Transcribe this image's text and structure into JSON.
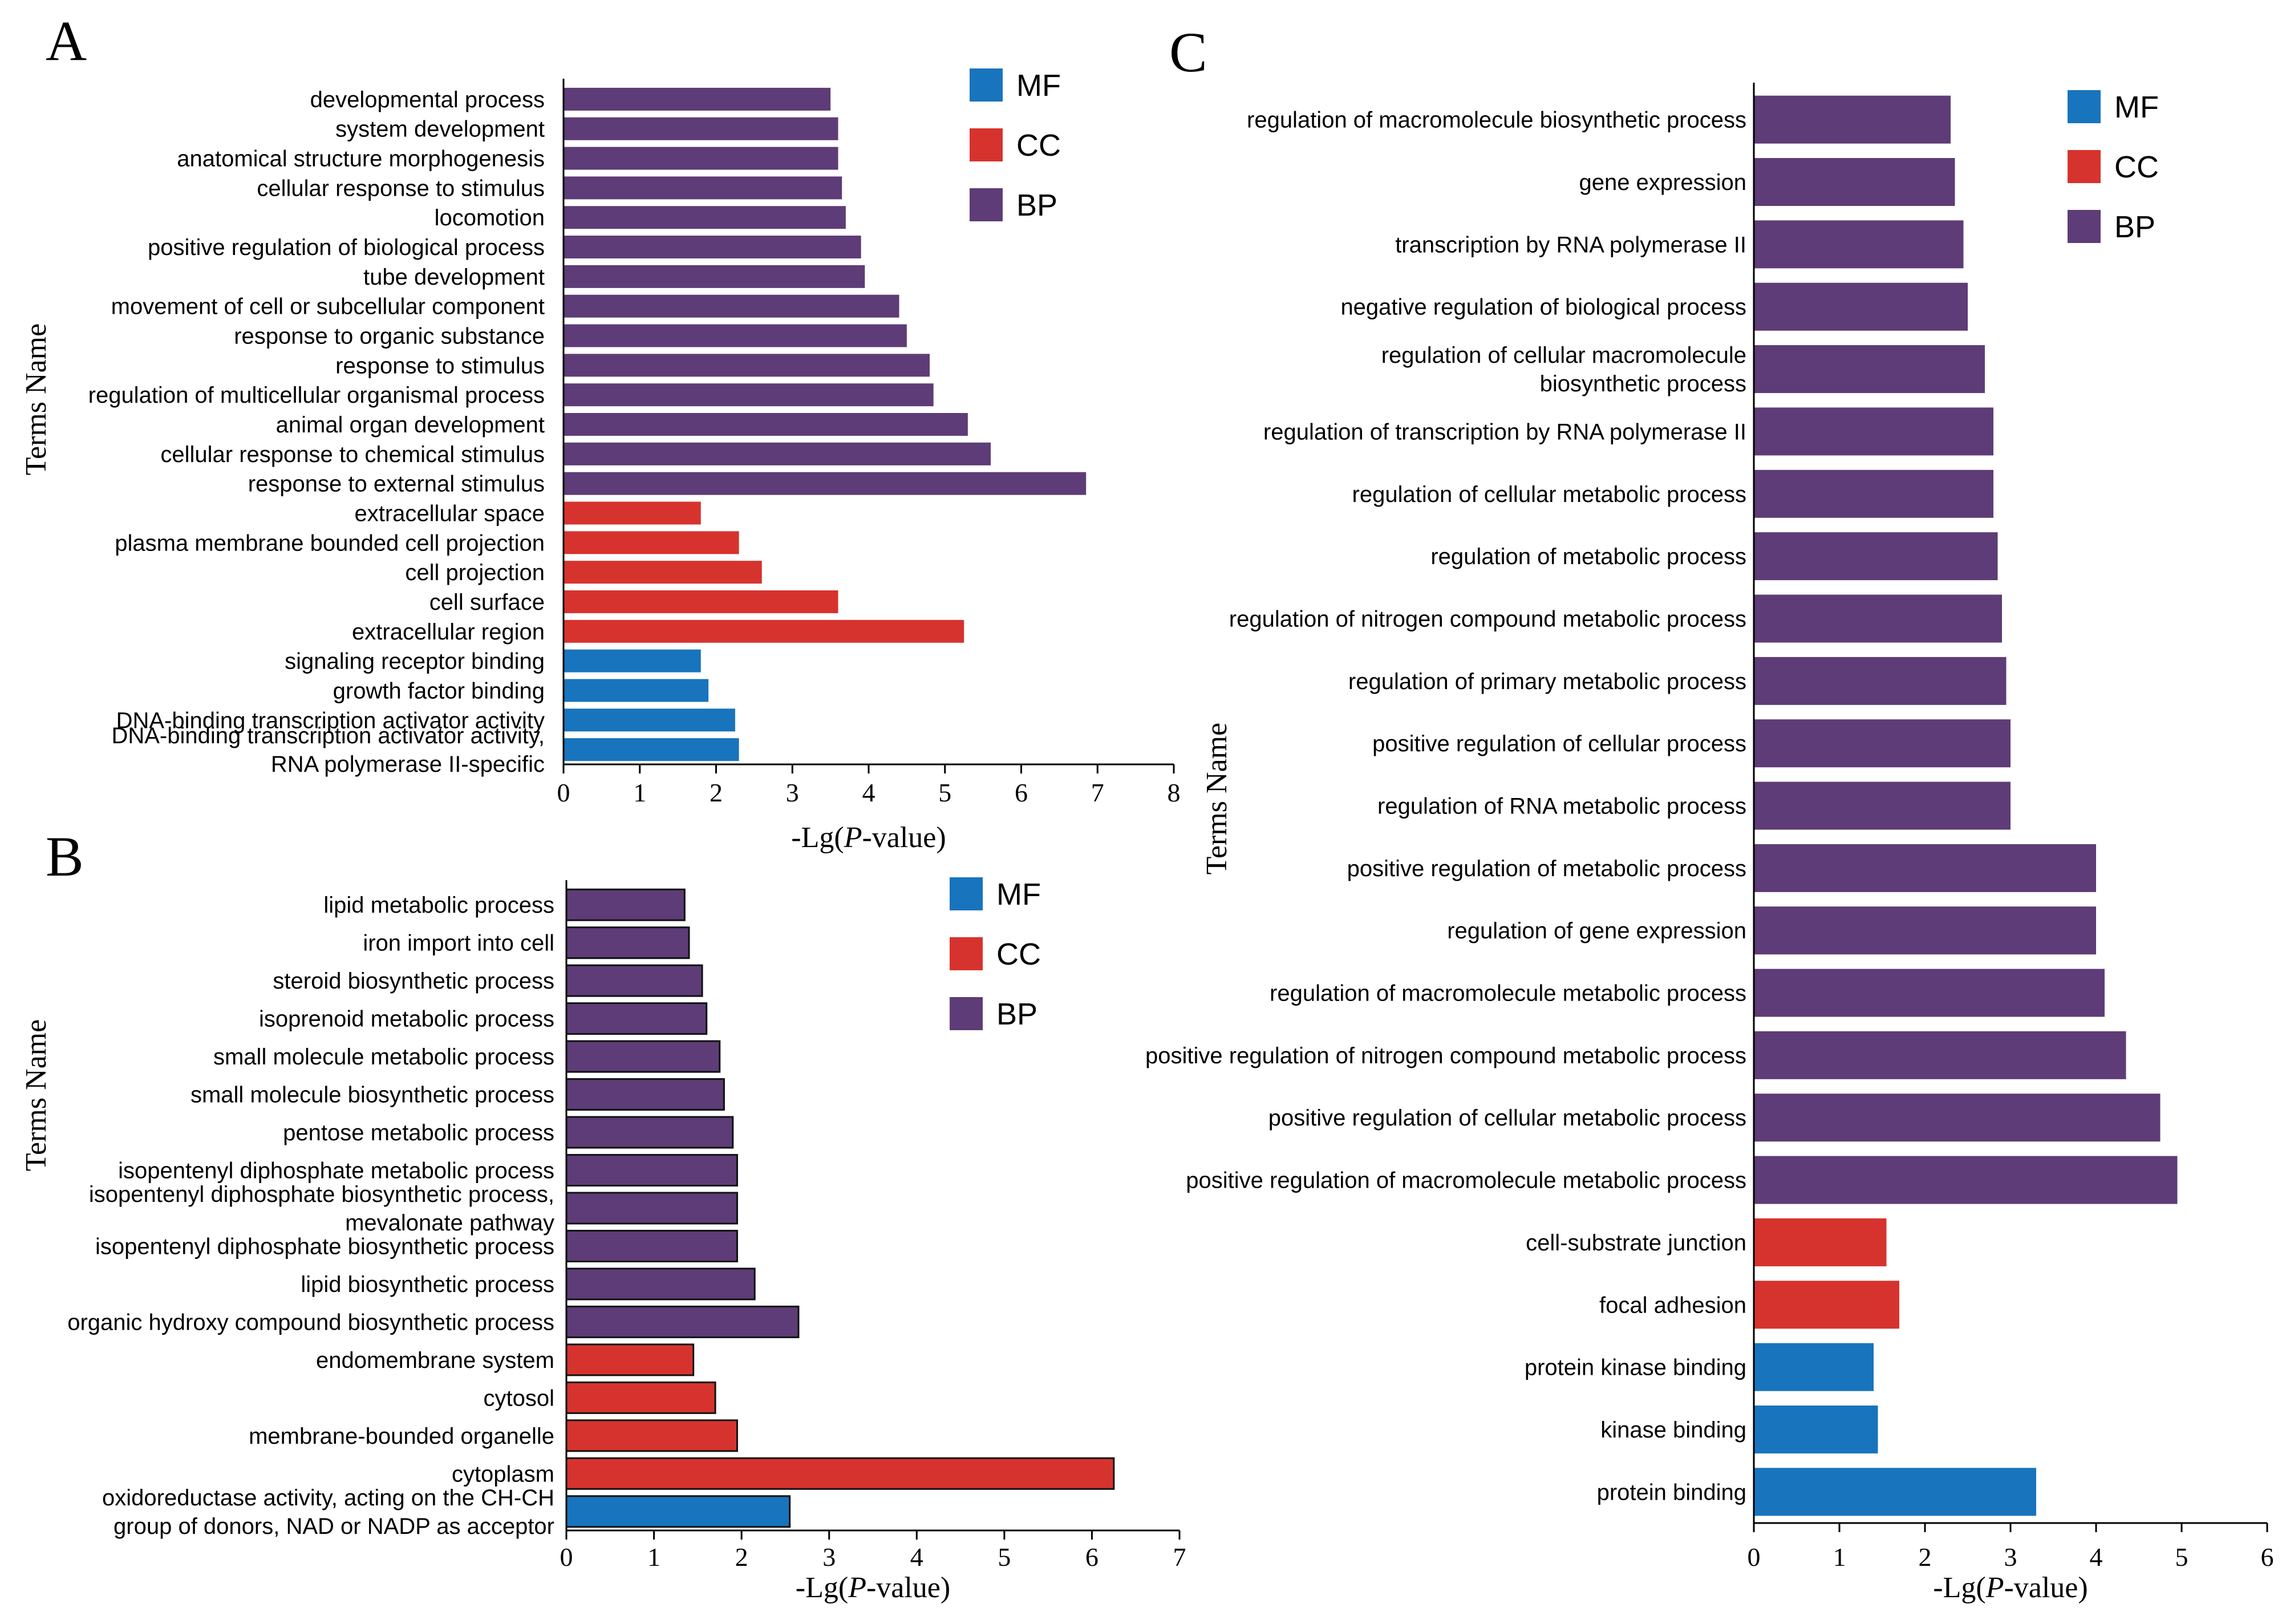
{
  "colors": {
    "MF": "#1874bd",
    "CC": "#d7332e",
    "BP": "#5e3c77"
  },
  "legend": [
    {
      "key": "MF",
      "label": "MF"
    },
    {
      "key": "CC",
      "label": "CC"
    },
    {
      "key": "BP",
      "label": "BP"
    }
  ],
  "chart_data": [
    {
      "panel": "A",
      "type": "bar",
      "orientation": "horizontal",
      "xlabel_prefix": "-Lg(",
      "xlabel_italic": "P",
      "xlabel_suffix": "-value)",
      "ylabel": "Terms Name",
      "xlim": [
        0,
        8
      ],
      "xticks": [
        "0",
        "1",
        "2",
        "3",
        "4",
        "5",
        "6",
        "7",
        "8"
      ],
      "legend_position": "top-right",
      "bars": [
        {
          "term": [
            "developmental process"
          ],
          "value": 3.5,
          "category": "BP"
        },
        {
          "term": [
            "system development"
          ],
          "value": 3.6,
          "category": "BP"
        },
        {
          "term": [
            "anatomical structure morphogenesis"
          ],
          "value": 3.6,
          "category": "BP"
        },
        {
          "term": [
            "cellular response to stimulus"
          ],
          "value": 3.65,
          "category": "BP"
        },
        {
          "term": [
            "locomotion"
          ],
          "value": 3.7,
          "category": "BP"
        },
        {
          "term": [
            "positive regulation of biological process"
          ],
          "value": 3.9,
          "category": "BP"
        },
        {
          "term": [
            "tube development"
          ],
          "value": 3.95,
          "category": "BP"
        },
        {
          "term": [
            "movement of cell or subcellular component"
          ],
          "value": 4.4,
          "category": "BP"
        },
        {
          "term": [
            "response to organic substance"
          ],
          "value": 4.5,
          "category": "BP"
        },
        {
          "term": [
            "response to stimulus"
          ],
          "value": 4.8,
          "category": "BP"
        },
        {
          "term": [
            "regulation of multicellular organismal process"
          ],
          "value": 4.85,
          "category": "BP"
        },
        {
          "term": [
            "animal organ development"
          ],
          "value": 5.3,
          "category": "BP"
        },
        {
          "term": [
            "cellular response to chemical stimulus"
          ],
          "value": 5.6,
          "category": "BP"
        },
        {
          "term": [
            "response to external stimulus"
          ],
          "value": 6.85,
          "category": "BP"
        },
        {
          "term": [
            "extracellular space"
          ],
          "value": 1.8,
          "category": "CC"
        },
        {
          "term": [
            "plasma membrane bounded cell projection"
          ],
          "value": 2.3,
          "category": "CC"
        },
        {
          "term": [
            "cell projection"
          ],
          "value": 2.6,
          "category": "CC"
        },
        {
          "term": [
            "cell surface"
          ],
          "value": 3.6,
          "category": "CC"
        },
        {
          "term": [
            "extracellular region"
          ],
          "value": 5.25,
          "category": "CC"
        },
        {
          "term": [
            "signaling receptor binding"
          ],
          "value": 1.8,
          "category": "MF"
        },
        {
          "term": [
            "growth factor binding"
          ],
          "value": 1.9,
          "category": "MF"
        },
        {
          "term": [
            "DNA-binding transcription activator activity"
          ],
          "value": 2.25,
          "category": "MF"
        },
        {
          "term": [
            "DNA-binding transcription activator activity,",
            "RNA polymerase II-specific"
          ],
          "value": 2.3,
          "category": "MF"
        }
      ]
    },
    {
      "panel": "B",
      "type": "bar",
      "orientation": "horizontal",
      "xlabel_prefix": "-Lg(",
      "xlabel_italic": "P",
      "xlabel_suffix": "-value)",
      "ylabel": "Terms Name",
      "xlim": [
        0,
        7
      ],
      "xticks": [
        "0",
        "1",
        "2",
        "3",
        "4",
        "5",
        "6",
        "7"
      ],
      "legend_position": "top-right",
      "bars": [
        {
          "term": [
            "lipid metabolic process"
          ],
          "value": 1.35,
          "category": "BP"
        },
        {
          "term": [
            "iron import into cell"
          ],
          "value": 1.4,
          "category": "BP"
        },
        {
          "term": [
            "steroid biosynthetic process"
          ],
          "value": 1.55,
          "category": "BP"
        },
        {
          "term": [
            "isoprenoid metabolic process"
          ],
          "value": 1.6,
          "category": "BP"
        },
        {
          "term": [
            "small molecule metabolic process"
          ],
          "value": 1.75,
          "category": "BP"
        },
        {
          "term": [
            "small molecule biosynthetic process"
          ],
          "value": 1.8,
          "category": "BP"
        },
        {
          "term": [
            "pentose metabolic process"
          ],
          "value": 1.9,
          "category": "BP"
        },
        {
          "term": [
            "isopentenyl diphosphate metabolic process"
          ],
          "value": 1.95,
          "category": "BP"
        },
        {
          "term": [
            "isopentenyl diphosphate biosynthetic process,",
            "mevalonate pathway"
          ],
          "value": 1.95,
          "category": "BP"
        },
        {
          "term": [
            "isopentenyl diphosphate biosynthetic process"
          ],
          "value": 1.95,
          "category": "BP"
        },
        {
          "term": [
            "lipid biosynthetic process"
          ],
          "value": 2.15,
          "category": "BP"
        },
        {
          "term": [
            "organic hydroxy compound biosynthetic process"
          ],
          "value": 2.65,
          "category": "BP"
        },
        {
          "term": [
            "endomembrane system"
          ],
          "value": 1.45,
          "category": "CC"
        },
        {
          "term": [
            "cytosol"
          ],
          "value": 1.7,
          "category": "CC"
        },
        {
          "term": [
            "membrane-bounded organelle"
          ],
          "value": 1.95,
          "category": "CC"
        },
        {
          "term": [
            "cytoplasm"
          ],
          "value": 6.25,
          "category": "CC"
        },
        {
          "term": [
            "oxidoreductase activity, acting on the CH-CH",
            "group of donors, NAD or NADP as acceptor"
          ],
          "value": 2.55,
          "category": "MF"
        }
      ]
    },
    {
      "panel": "C",
      "type": "bar",
      "orientation": "horizontal",
      "xlabel_prefix": "-Lg(",
      "xlabel_italic": "P",
      "xlabel_suffix": "-value)",
      "ylabel": "Terms Name",
      "xlim": [
        0,
        6
      ],
      "xticks": [
        "0",
        "1",
        "2",
        "3",
        "4",
        "5",
        "6"
      ],
      "legend_position": "top-right",
      "bars": [
        {
          "term": [
            "regulation of macromolecule biosynthetic process"
          ],
          "value": 2.3,
          "category": "BP"
        },
        {
          "term": [
            "gene expression"
          ],
          "value": 2.35,
          "category": "BP"
        },
        {
          "term": [
            "transcription by RNA polymerase II"
          ],
          "value": 2.45,
          "category": "BP"
        },
        {
          "term": [
            "negative regulation of biological process"
          ],
          "value": 2.5,
          "category": "BP"
        },
        {
          "term": [
            "regulation of cellular macromolecule",
            "biosynthetic process"
          ],
          "value": 2.7,
          "category": "BP"
        },
        {
          "term": [
            "regulation of transcription by RNA polymerase II"
          ],
          "value": 2.8,
          "category": "BP"
        },
        {
          "term": [
            "regulation of cellular metabolic process"
          ],
          "value": 2.8,
          "category": "BP"
        },
        {
          "term": [
            "regulation of metabolic process"
          ],
          "value": 2.85,
          "category": "BP"
        },
        {
          "term": [
            "regulation of nitrogen compound metabolic process"
          ],
          "value": 2.9,
          "category": "BP"
        },
        {
          "term": [
            "regulation of primary metabolic process"
          ],
          "value": 2.95,
          "category": "BP"
        },
        {
          "term": [
            "positive regulation of cellular process"
          ],
          "value": 3.0,
          "category": "BP"
        },
        {
          "term": [
            "regulation of RNA metabolic process"
          ],
          "value": 3.0,
          "category": "BP"
        },
        {
          "term": [
            "positive regulation of metabolic process"
          ],
          "value": 4.0,
          "category": "BP"
        },
        {
          "term": [
            "regulation of gene expression"
          ],
          "value": 4.0,
          "category": "BP"
        },
        {
          "term": [
            "regulation of macromolecule metabolic process"
          ],
          "value": 4.1,
          "category": "BP"
        },
        {
          "term": [
            "positive regulation of nitrogen compound metabolic process"
          ],
          "value": 4.35,
          "category": "BP"
        },
        {
          "term": [
            "positive regulation of cellular metabolic process"
          ],
          "value": 4.75,
          "category": "BP"
        },
        {
          "term": [
            "positive regulation of macromolecule metabolic process"
          ],
          "value": 4.95,
          "category": "BP"
        },
        {
          "term": [
            "cell-substrate junction"
          ],
          "value": 1.55,
          "category": "CC"
        },
        {
          "term": [
            "focal adhesion"
          ],
          "value": 1.7,
          "category": "CC"
        },
        {
          "term": [
            "protein kinase binding"
          ],
          "value": 1.4,
          "category": "MF"
        },
        {
          "term": [
            "kinase binding"
          ],
          "value": 1.45,
          "category": "MF"
        },
        {
          "term": [
            "protein binding"
          ],
          "value": 3.3,
          "category": "MF"
        }
      ]
    }
  ]
}
